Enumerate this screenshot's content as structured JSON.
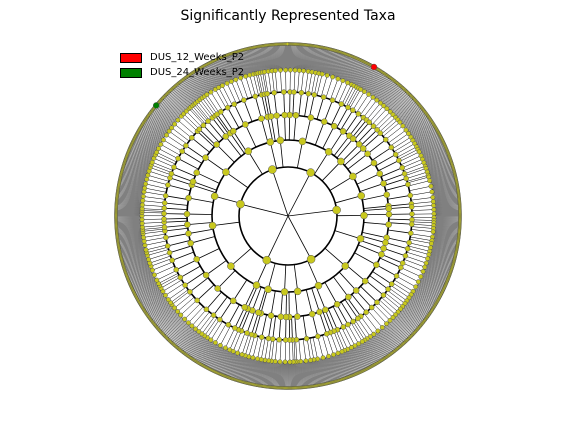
{
  "figure": {
    "title": "Significantly Represented Taxa"
  },
  "legend": {
    "items": [
      {
        "label": "DUS_12_Weeks_P2",
        "color": "#ff0000"
      },
      {
        "label": "DUS_24_Weeks_P2",
        "color": "#008000"
      }
    ]
  },
  "cladogram": {
    "node_color": "#c8c81e",
    "ring_count": 4,
    "branch_color": "#000000",
    "highlight_nodes": [
      {
        "group": "DUS_12_Weeks_P2",
        "color": "#ff0000"
      },
      {
        "group": "DUS_24_Weeks_P2",
        "color": "#008000"
      }
    ]
  }
}
